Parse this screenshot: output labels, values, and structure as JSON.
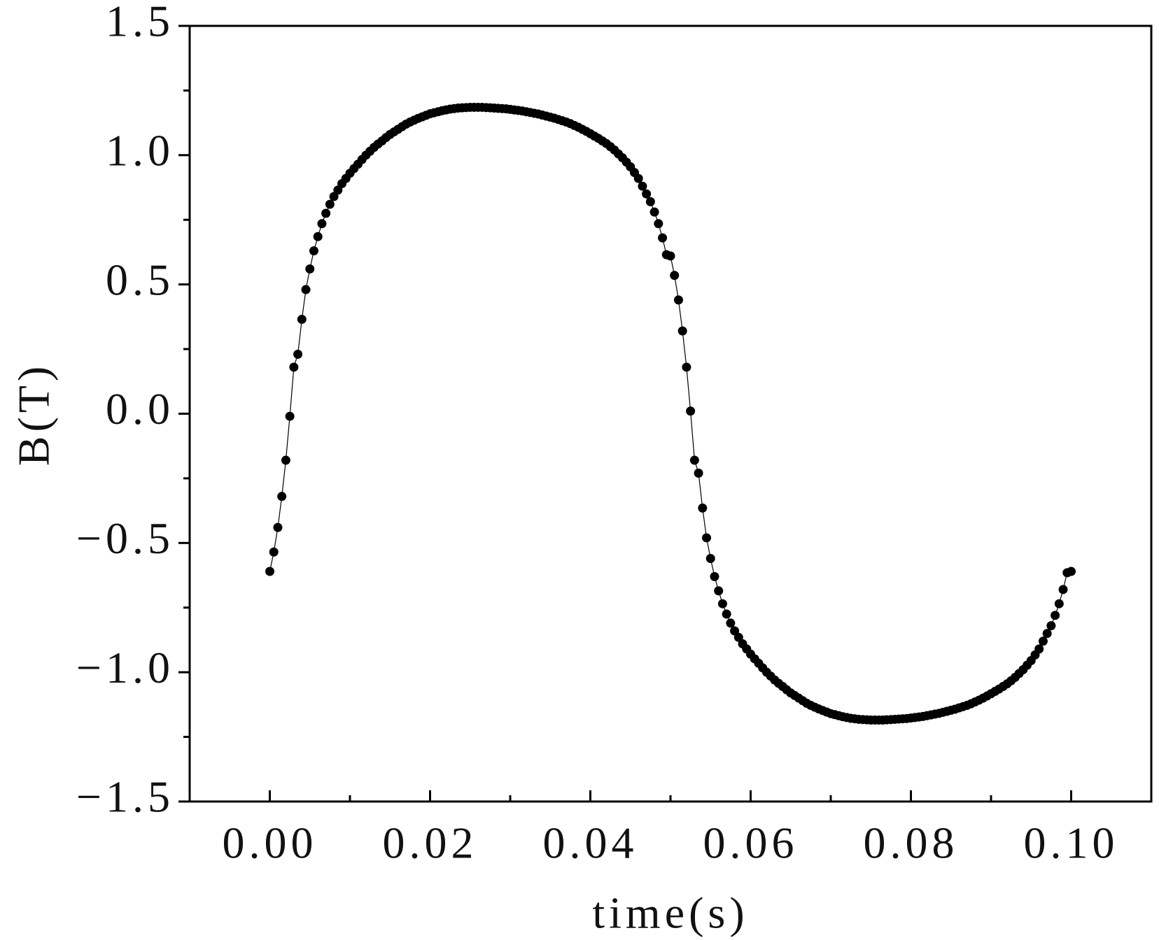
{
  "chart_data": {
    "type": "line",
    "markers": true,
    "x_label": "time(s)",
    "y_label": "B(T)",
    "xlim": [
      -0.01,
      0.11
    ],
    "ylim": [
      -1.5,
      1.5
    ],
    "xticks": [
      {
        "value": 0,
        "label": "0.00"
      },
      {
        "value": 0.02,
        "label": "0.02"
      },
      {
        "value": 0.04,
        "label": "0.04"
      },
      {
        "value": 0.06,
        "label": "0.06"
      },
      {
        "value": 0.08,
        "label": "0.08"
      },
      {
        "value": 0.1,
        "label": "0.10"
      }
    ],
    "xminorticks": [
      0.01,
      0.03,
      0.05,
      0.07,
      0.09
    ],
    "yticks": [
      {
        "value": -1.5,
        "label": "−1.5"
      },
      {
        "value": -1,
        "label": "−1.0"
      },
      {
        "value": -0.5,
        "label": "−0.5"
      },
      {
        "value": 0,
        "label": "0.0"
      },
      0.5,
      {
        "value": 1,
        "label": "1.0"
      },
      1.5
    ],
    "yminorticks": [
      -1.25,
      -0.75,
      -0.25,
      0.25,
      0.75,
      1.25
    ],
    "series": [
      {
        "color": "#000000",
        "x": [
          0,
          0.0005,
          0.001,
          0.0015,
          0.002,
          0.0025,
          0.003,
          0.0035,
          0.004,
          0.0045,
          0.005,
          0.0055,
          0.006,
          0.0065,
          0.007,
          0.0075,
          0.008,
          0.0085,
          0.009,
          0.0095,
          0.01,
          0.0105,
          0.011,
          0.0115,
          0.012,
          0.0125,
          0.013,
          0.0135,
          0.014,
          0.0145,
          0.015,
          0.0155,
          0.016,
          0.0165,
          0.017,
          0.0175,
          0.018,
          0.0185,
          0.019,
          0.0195,
          0.02,
          0.0205,
          0.021,
          0.0215,
          0.022,
          0.0225,
          0.023,
          0.0235,
          0.024,
          0.0245,
          0.025,
          0.0255,
          0.026,
          0.0265,
          0.027,
          0.0275,
          0.028,
          0.0285,
          0.029,
          0.0295,
          0.03,
          0.0305,
          0.031,
          0.0315,
          0.032,
          0.0325,
          0.033,
          0.0335,
          0.034,
          0.0345,
          0.035,
          0.0355,
          0.036,
          0.0365,
          0.037,
          0.0375,
          0.038,
          0.0385,
          0.039,
          0.0395,
          0.04,
          0.0405,
          0.041,
          0.0415,
          0.042,
          0.0425,
          0.043,
          0.0435,
          0.044,
          0.0445,
          0.045,
          0.0455,
          0.046,
          0.0465,
          0.047,
          0.0475,
          0.048,
          0.0485,
          0.049,
          0.0495,
          0.05,
          0.0505,
          0.051,
          0.0515,
          0.052,
          0.0525,
          0.053,
          0.0535,
          0.054,
          0.0545,
          0.055,
          0.0555,
          0.056,
          0.0565,
          0.057,
          0.0575,
          0.058,
          0.0585,
          0.059,
          0.0595,
          0.06,
          0.0605,
          0.061,
          0.0615,
          0.062,
          0.0625,
          0.063,
          0.0635,
          0.064,
          0.0645,
          0.065,
          0.0655,
          0.066,
          0.0665,
          0.067,
          0.0675,
          0.068,
          0.0685,
          0.069,
          0.0695,
          0.07,
          0.0705,
          0.071,
          0.0715,
          0.072,
          0.0725,
          0.073,
          0.0735,
          0.074,
          0.0745,
          0.075,
          0.0755,
          0.076,
          0.0765,
          0.077,
          0.0775,
          0.078,
          0.0785,
          0.079,
          0.0795,
          0.08,
          0.0805,
          0.081,
          0.0815,
          0.082,
          0.0825,
          0.083,
          0.0835,
          0.084,
          0.0845,
          0.085,
          0.0855,
          0.086,
          0.0865,
          0.087,
          0.0875,
          0.088,
          0.0885,
          0.089,
          0.0895,
          0.09,
          0.0905,
          0.091,
          0.0915,
          0.092,
          0.0925,
          0.093,
          0.0935,
          0.094,
          0.0945,
          0.095,
          0.0955,
          0.096,
          0.0965,
          0.097,
          0.0975,
          0.098,
          0.0985,
          0.099,
          0.0995,
          0.1
        ],
        "values": [
          -0.61,
          -0.535,
          -0.44,
          -0.32,
          -0.18,
          -0.01,
          0.18,
          0.23,
          0.365,
          0.48,
          0.56,
          0.63,
          0.685,
          0.735,
          0.775,
          0.81,
          0.84,
          0.865,
          0.89,
          0.91,
          0.93,
          0.948,
          0.965,
          0.983,
          1.0,
          1.015,
          1.03,
          1.043,
          1.055,
          1.068,
          1.08,
          1.09,
          1.1,
          1.11,
          1.12,
          1.128,
          1.135,
          1.142,
          1.148,
          1.154,
          1.16,
          1.164,
          1.168,
          1.172,
          1.175,
          1.178,
          1.18,
          1.182,
          1.183,
          1.184,
          1.185,
          1.185,
          1.185,
          1.185,
          1.184,
          1.183,
          1.182,
          1.181,
          1.18,
          1.179,
          1.177,
          1.175,
          1.173,
          1.171,
          1.168,
          1.165,
          1.162,
          1.159,
          1.155,
          1.151,
          1.147,
          1.143,
          1.138,
          1.133,
          1.128,
          1.122,
          1.115,
          1.108,
          1.1,
          1.092,
          1.083,
          1.074,
          1.065,
          1.055,
          1.045,
          1.033,
          1.02,
          1.005,
          0.99,
          0.973,
          0.955,
          0.933,
          0.91,
          0.88,
          0.85,
          0.82,
          0.78,
          0.735,
          0.68,
          0.615,
          0.61,
          0.535,
          0.44,
          0.32,
          0.18,
          0.01,
          -0.18,
          -0.23,
          -0.365,
          -0.48,
          -0.56,
          -0.63,
          -0.685,
          -0.735,
          -0.775,
          -0.81,
          -0.84,
          -0.865,
          -0.89,
          -0.91,
          -0.93,
          -0.948,
          -0.965,
          -0.983,
          -1.0,
          -1.015,
          -1.03,
          -1.043,
          -1.055,
          -1.068,
          -1.08,
          -1.09,
          -1.1,
          -1.11,
          -1.12,
          -1.128,
          -1.135,
          -1.142,
          -1.148,
          -1.154,
          -1.16,
          -1.164,
          -1.168,
          -1.172,
          -1.175,
          -1.178,
          -1.18,
          -1.182,
          -1.183,
          -1.184,
          -1.185,
          -1.185,
          -1.185,
          -1.185,
          -1.184,
          -1.183,
          -1.182,
          -1.181,
          -1.18,
          -1.179,
          -1.177,
          -1.175,
          -1.173,
          -1.171,
          -1.168,
          -1.165,
          -1.162,
          -1.159,
          -1.155,
          -1.151,
          -1.147,
          -1.143,
          -1.138,
          -1.133,
          -1.128,
          -1.122,
          -1.115,
          -1.108,
          -1.1,
          -1.092,
          -1.083,
          -1.074,
          -1.065,
          -1.055,
          -1.045,
          -1.033,
          -1.02,
          -1.005,
          -0.99,
          -0.973,
          -0.955,
          -0.933,
          -0.91,
          -0.88,
          -0.85,
          -0.82,
          -0.78,
          -0.735,
          -0.68,
          -0.615,
          -0.61
        ]
      }
    ]
  }
}
